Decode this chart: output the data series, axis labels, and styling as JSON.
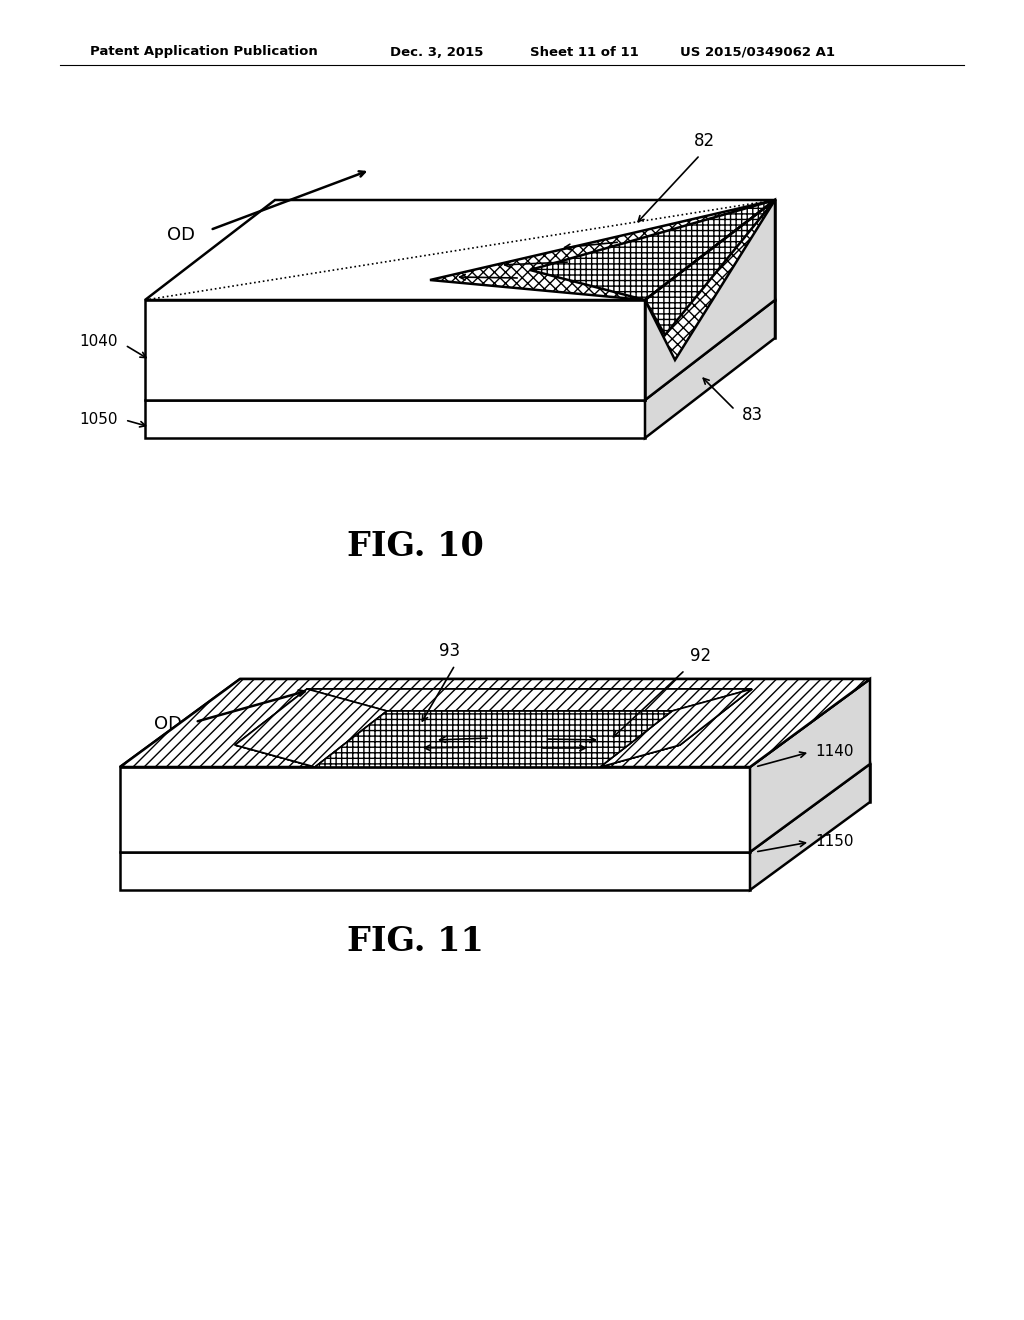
{
  "title_text_left": "Patent Application Publication",
  "title_text_mid": "Dec. 3, 2015",
  "title_text_sheet": "Sheet 11 of 11",
  "title_text_right": "US 2015/0349062 A1",
  "fig10_label": "FIG. 10",
  "fig11_label": "FIG. 11",
  "bg_color": "#ffffff",
  "line_color": "#000000"
}
